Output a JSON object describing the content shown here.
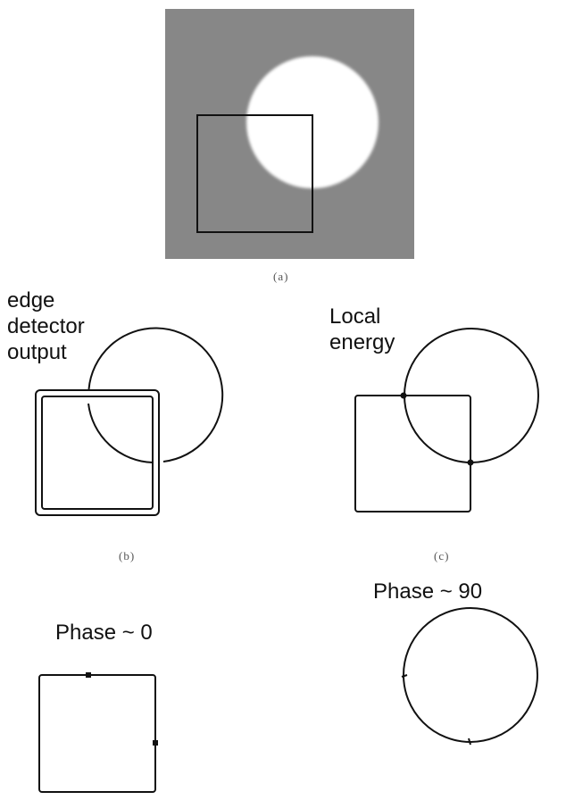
{
  "panels": {
    "a": {
      "caption": "(a)"
    },
    "b": {
      "caption": "(b)",
      "label": "edge\ndetector\noutput"
    },
    "c": {
      "caption": "(c)",
      "label": "Local\nenergy"
    },
    "d": {
      "label": "Phase ~ 0"
    },
    "e": {
      "label": "Phase ~ 90"
    }
  },
  "colors": {
    "background_gray": "#878787",
    "disc_white": "#ffffff",
    "stroke": "#111111"
  }
}
